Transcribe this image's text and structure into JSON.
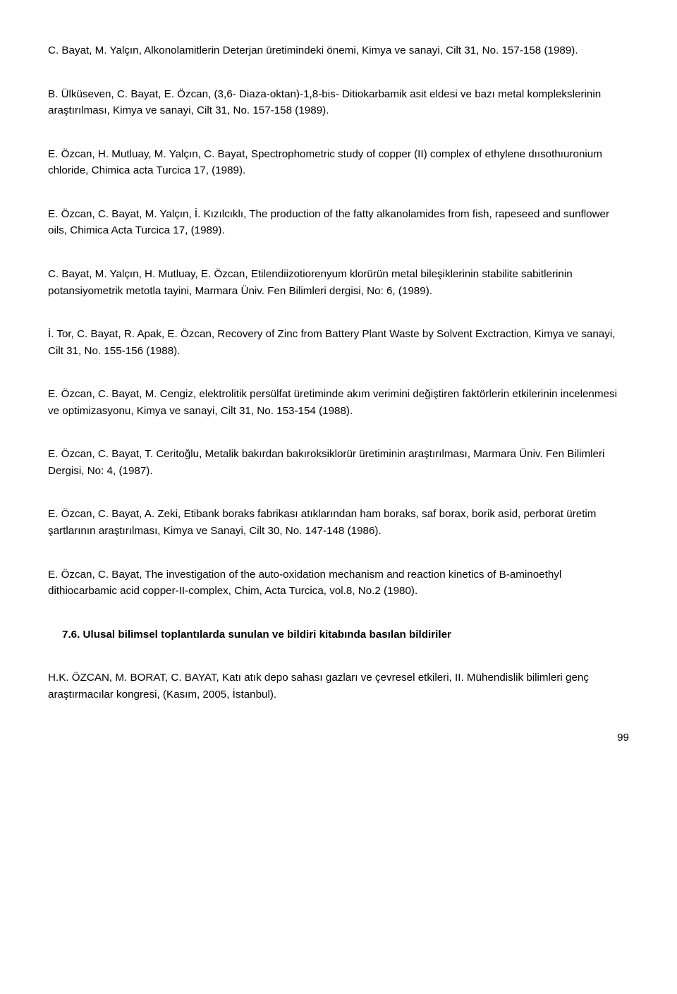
{
  "refs": [
    "C. Bayat, M. Yalçın, Alkonolamitlerin Deterjan üretimindeki önemi, Kimya ve sanayi, Cilt 31, No. 157-158 (1989).",
    " B. Ülküseven, C. Bayat, E. Özcan, (3,6- Diaza-oktan)-1,8-bis- Ditiokarbamik asit eldesi ve bazı metal komplekslerinin araştırılması, Kimya ve sanayi, Cilt 31, No. 157-158 (1989).",
    " E. Özcan, H. Mutluay, M. Yalçın, C. Bayat, Spectrophometric study of copper (II) complex of ethylene dıısothıuronium chloride, Chimica acta Turcica 17, (1989).",
    " E. Özcan, C. Bayat, M. Yalçın, İ. Kızılcıklı, The production of the fatty alkanolamides from fish, rapeseed and sunflower oils, Chimica Acta Turcica 17, (1989).",
    " C. Bayat, M. Yalçın, H. Mutluay, E. Özcan, Etilendiizotiorenyum klorürün metal bileşiklerinin stabilite sabitlerinin potansiyometrik metotla tayini, Marmara Üniv. Fen Bilimleri dergisi, No: 6, (1989).",
    " İ. Tor, C. Bayat, R. Apak, E. Özcan, Recovery of Zinc from Battery Plant Waste by Solvent Exctraction, Kimya ve sanayi, Cilt 31, No. 155-156 (1988).",
    " E. Özcan, C. Bayat, M. Cengiz, elektrolitik persülfat üretiminde akım verimini değiştiren faktörlerin etkilerinin incelenmesi ve optimizasyonu, Kimya ve sanayi, Cilt 31, No. 153-154 (1988).",
    " E. Özcan, C. Bayat, T. Ceritoğlu, Metalik bakırdan bakıroksiklorür üretiminin araştırılması, Marmara Üniv. Fen Bilimleri Dergisi, No: 4, (1987).",
    " E. Özcan, C. Bayat, A. Zeki, Etibank boraks fabrikası atıklarından ham boraks, saf borax, borik asid, perborat üretim şartlarının araştırılması, Kimya ve Sanayi, Cilt 30, No. 147-148 (1986).",
    " E. Özcan, C. Bayat, The investigation of the auto-oxidation mechanism and reaction kinetics of B-aminoethyl dithiocarbamic acid copper-II-complex, Chim, Acta Turcica, vol.8, No.2 (1980)."
  ],
  "section_heading": "7.6.  Ulusal bilimsel toplantılarda sunulan ve bildiri kitabında basılan bildiriler",
  "post_refs": [
    "H.K. ÖZCAN, M. BORAT, C. BAYAT, Katı atık depo sahası gazları ve çevresel etkileri, II. Mühendislik bilimleri genç araştırmacılar kongresi, (Kasım, 2005, İstanbul)."
  ],
  "page_number": "99",
  "colors": {
    "text": "#000000",
    "background": "#ffffff"
  },
  "typography": {
    "font_family": "Arial",
    "font_size_pt": 11,
    "line_height": 1.55
  }
}
